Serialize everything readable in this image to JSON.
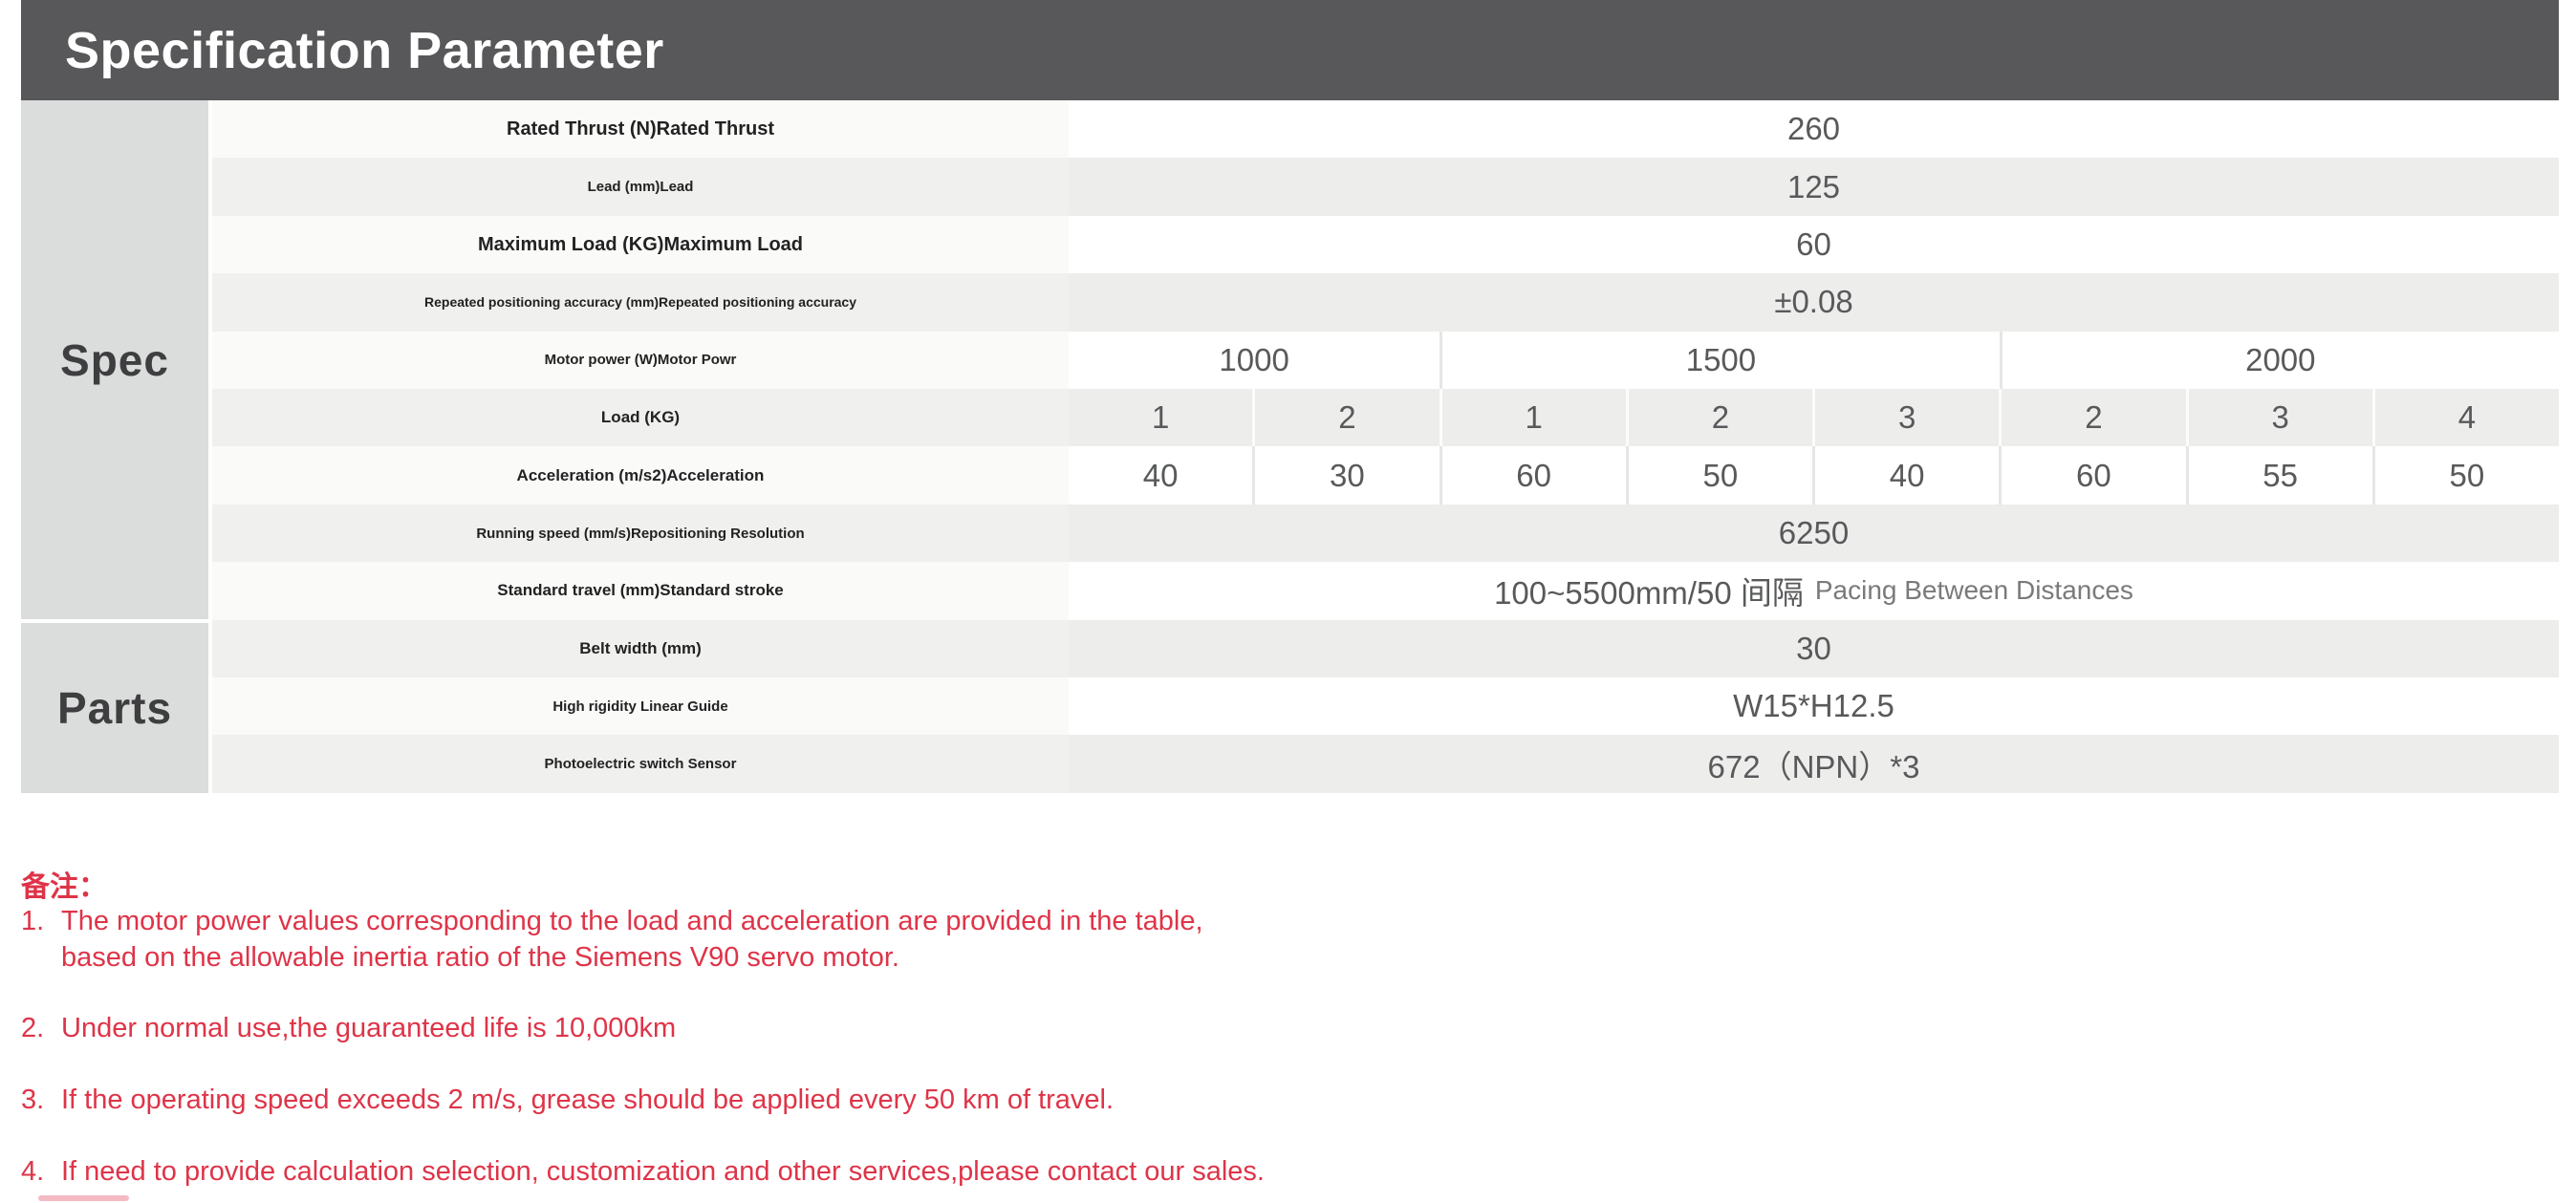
{
  "header": {
    "title": "Specification Parameter"
  },
  "sidebar": {
    "spec_label": "Spec",
    "parts_label": "Parts"
  },
  "table": {
    "rows": [
      {
        "label": "Rated Thrust (N)Rated Thrust",
        "label_size": "lg",
        "cells": [
          {
            "text": "260",
            "span": 8
          }
        ]
      },
      {
        "label": "Lead (mm)Lead",
        "label_size": "sm",
        "cells": [
          {
            "text": "125",
            "span": 8
          }
        ]
      },
      {
        "label": "Maximum Load (KG)Maximum Load",
        "label_size": "lg",
        "cells": [
          {
            "text": "60",
            "span": 8
          }
        ]
      },
      {
        "label": "Repeated positioning accuracy (mm)Repeated positioning accuracy",
        "label_size": "xs",
        "cells": [
          {
            "text": "±0.08",
            "span": 8
          }
        ]
      },
      {
        "label": "Motor power (W)Motor Powr",
        "label_size": "sm",
        "cells": [
          {
            "text": "1000",
            "span": 2
          },
          {
            "text": "1500",
            "span": 3
          },
          {
            "text": "2000",
            "span": 3
          }
        ]
      },
      {
        "label": "Load (KG)",
        "label_size": "md",
        "cells": [
          {
            "text": "1",
            "span": 1
          },
          {
            "text": "2",
            "span": 1
          },
          {
            "text": "1",
            "span": 1
          },
          {
            "text": "2",
            "span": 1
          },
          {
            "text": "3",
            "span": 1
          },
          {
            "text": "2",
            "span": 1
          },
          {
            "text": "3",
            "span": 1
          },
          {
            "text": "4",
            "span": 1
          }
        ]
      },
      {
        "label": "Acceleration (m/s2)Acceleration",
        "label_size": "md",
        "cells": [
          {
            "text": "40",
            "span": 1
          },
          {
            "text": "30",
            "span": 1
          },
          {
            "text": "60",
            "span": 1
          },
          {
            "text": "50",
            "span": 1
          },
          {
            "text": "40",
            "span": 1
          },
          {
            "text": "60",
            "span": 1
          },
          {
            "text": "55",
            "span": 1
          },
          {
            "text": "50",
            "span": 1
          }
        ]
      },
      {
        "label": "Running speed (mm/s)Repositioning Resolution",
        "label_size": "sm",
        "cells": [
          {
            "text": "6250",
            "span": 8
          }
        ]
      },
      {
        "label": "Standard travel (mm)Standard stroke",
        "label_size": "md",
        "cells": [
          {
            "text": "100~5500mm/50 间隔",
            "suffix": "Pacing Between Distances",
            "span": 8
          }
        ]
      },
      {
        "label": "Belt width (mm)",
        "label_size": "md",
        "cells": [
          {
            "text": "30",
            "span": 8
          }
        ]
      },
      {
        "label": "High rigidity Linear Guide",
        "label_size": "sm",
        "cells": [
          {
            "text": "W15*H12.5",
            "span": 8
          }
        ]
      },
      {
        "label": "Photoelectric switch Sensor",
        "label_size": "sm",
        "cells": [
          {
            "text": "672（NPN）*3",
            "span": 8
          }
        ]
      }
    ]
  },
  "notes": {
    "title": "备注：",
    "items": [
      {
        "num": "1.",
        "lines": [
          "The motor power values corresponding to the load and acceleration are provided in the table,",
          "based on the allowable inertia ratio of the Siemens V90 servo motor."
        ]
      },
      {
        "num": "2.",
        "lines": [
          "Under normal use,the guaranteed life is 10,000km"
        ]
      },
      {
        "num": "3.",
        "lines": [
          "If the operating speed exceeds 2 m/s, grease should be applied every 50 km of travel."
        ]
      },
      {
        "num": "4.",
        "lines": [
          "If need to provide calculation selection, customization and other services,please contact our sales."
        ]
      }
    ]
  },
  "colors": {
    "header_bg": "#58585A",
    "sidebar_bg": "#DBDCDC",
    "note_red": "#DE3448",
    "value_text": "#58595B",
    "label_text": "#222222"
  }
}
